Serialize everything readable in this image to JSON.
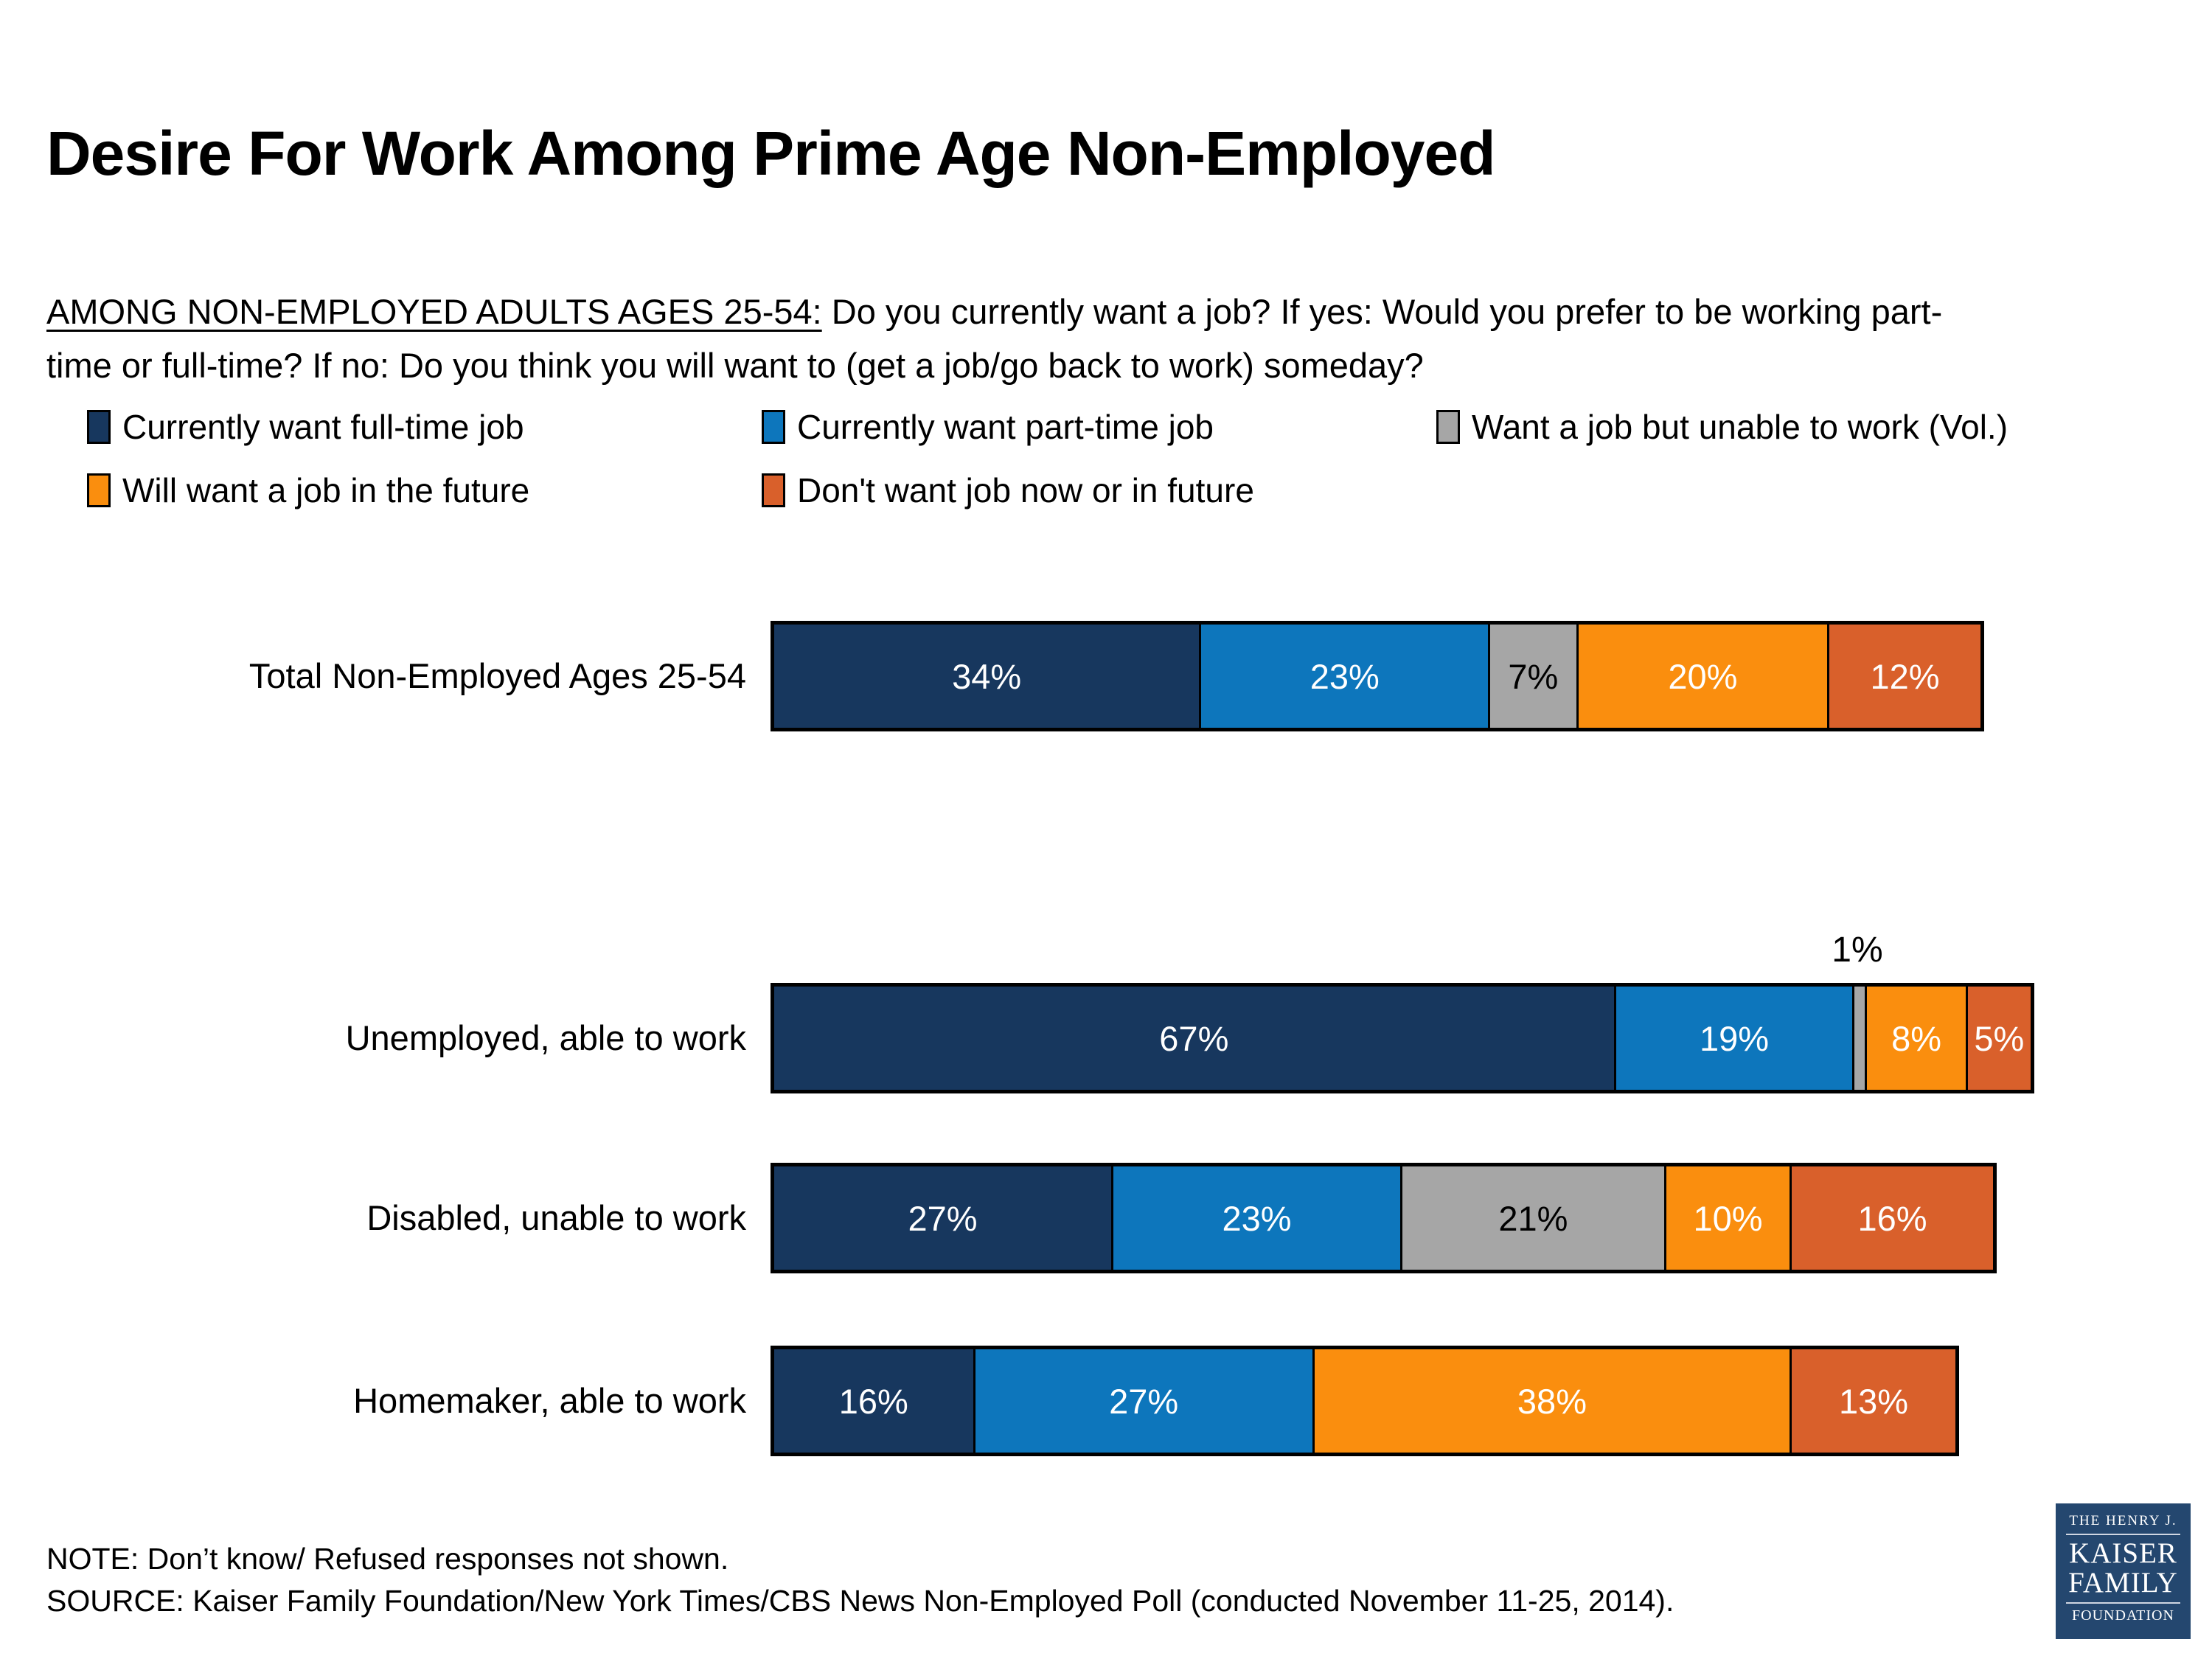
{
  "title": "Desire For Work Among Prime Age Non-Employed",
  "question": {
    "lead": "AMONG NON-EMPLOYED ADULTS AGES 25-54:",
    "rest_line1": " Do you currently want a job? If yes: Would you prefer to be working part-",
    "rest_line2": "time or full-time? If no: Do you think you will want to (get a job/go back to work) someday?"
  },
  "legend": {
    "items": [
      {
        "label": "Currently want full-time job",
        "color": "#17375E"
      },
      {
        "label": "Currently want part-time job",
        "color": "#0D76BC"
      },
      {
        "label": "Want a job but unable to work (Vol.)",
        "color": "#A6A6A6"
      },
      {
        "label": "Will want a job in the future",
        "color": "#FA8E0E"
      },
      {
        "label": "Don't want job now or in future",
        "color": "#D9602B"
      }
    ]
  },
  "chart_data": {
    "type": "bar",
    "variant": "horizontal-stacked",
    "unit": "%",
    "xlim": [
      0,
      100
    ],
    "axis_visible": false,
    "categories": [
      "Total Non-Employed Ages 25-54",
      "Unemployed, able to work",
      "Disabled, unable to work",
      "Homemaker, able to work"
    ],
    "series": [
      {
        "name": "Currently want full-time job",
        "color": "#17375E",
        "label_color": "#FFFFFF",
        "values": [
          34,
          67,
          27,
          16
        ]
      },
      {
        "name": "Currently want part-time job",
        "color": "#0D76BC",
        "label_color": "#FFFFFF",
        "values": [
          23,
          19,
          23,
          27
        ]
      },
      {
        "name": "Want a job but unable to work (Vol.)",
        "color": "#A6A6A6",
        "label_color": "#000000",
        "values": [
          7,
          1,
          21,
          0
        ]
      },
      {
        "name": "Will want a job in the future",
        "color": "#FA8E0E",
        "label_color": "#FFFFFF",
        "values": [
          20,
          8,
          10,
          38
        ]
      },
      {
        "name": "Don't want job now or in future",
        "color": "#D9602B",
        "label_color": "#FFFFFF",
        "values": [
          12,
          5,
          16,
          13
        ]
      }
    ],
    "outside_label": {
      "category_index": 1,
      "series_index": 2,
      "text": "1%"
    }
  },
  "footer": {
    "note": "NOTE: Don’t know/ Refused responses not shown.",
    "source": "SOURCE: Kaiser Family Foundation/New York Times/CBS News Non-Employed Poll (conducted November 11-25, 2014)."
  },
  "logo": {
    "line1": "THE HENRY J.",
    "line2": "KAISER",
    "line3": "FAMILY",
    "line4": "FOUNDATION",
    "bg_color": "#24476F"
  }
}
